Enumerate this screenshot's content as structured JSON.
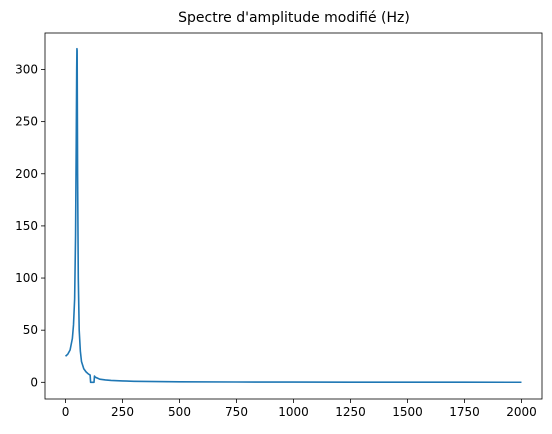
{
  "chart_data": {
    "type": "line",
    "title": "Spectre d'amplitude modifié (Hz)",
    "xlabel": "",
    "ylabel": "",
    "xlim": [
      -90,
      2090
    ],
    "ylim": [
      -16,
      335
    ],
    "xticks": [
      0,
      250,
      500,
      750,
      1000,
      1250,
      1500,
      1750,
      2000
    ],
    "xtick_labels": [
      "0",
      "250",
      "500",
      "750",
      "1000",
      "1250",
      "1500",
      "1750",
      "2000"
    ],
    "yticks": [
      0,
      50,
      100,
      150,
      200,
      250,
      300
    ],
    "ytick_labels": [
      "0",
      "50",
      "100",
      "150",
      "200",
      "250",
      "300"
    ],
    "grid": false,
    "series": [
      {
        "color": "#1f77b4",
        "x": [
          0,
          10,
          20,
          30,
          35,
          40,
          44,
          47,
          49,
          50,
          51,
          53,
          56,
          60,
          65,
          70,
          80,
          90,
          100,
          108,
          110,
          115,
          120,
          125,
          127,
          130,
          140,
          150,
          175,
          200,
          250,
          300,
          400,
          500,
          750,
          1000,
          1250,
          1500,
          1750,
          2000
        ],
        "y": [
          25,
          27,
          31,
          42,
          55,
          80,
          140,
          230,
          300,
          320,
          318,
          200,
          100,
          50,
          30,
          20,
          13,
          10,
          8,
          7,
          0,
          0,
          0,
          0,
          6,
          5,
          4,
          3,
          2.3,
          1.8,
          1.3,
          1,
          0.7,
          0.5,
          0.3,
          0.2,
          0.15,
          0.1,
          0.08,
          0.05
        ]
      }
    ]
  }
}
